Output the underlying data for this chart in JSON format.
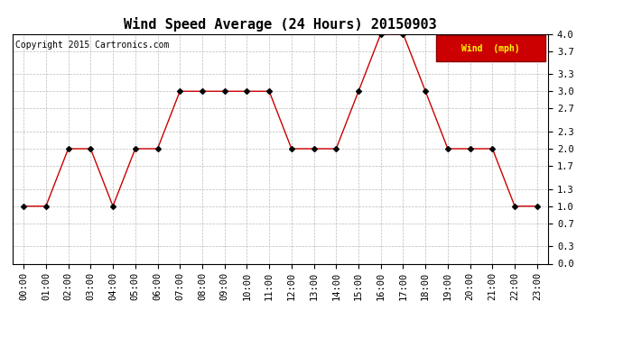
{
  "title": "Wind Speed Average (24 Hours) 20150903",
  "copyright": "Copyright 2015 Cartronics.com",
  "legend_label": "Wind  (mph)",
  "x_labels": [
    "00:00",
    "01:00",
    "02:00",
    "03:00",
    "04:00",
    "05:00",
    "06:00",
    "07:00",
    "08:00",
    "09:00",
    "10:00",
    "11:00",
    "12:00",
    "13:00",
    "14:00",
    "15:00",
    "16:00",
    "17:00",
    "18:00",
    "19:00",
    "20:00",
    "21:00",
    "22:00",
    "23:00"
  ],
  "y_values": [
    1.0,
    1.0,
    2.0,
    2.0,
    1.0,
    2.0,
    2.0,
    3.0,
    3.0,
    3.0,
    3.0,
    3.0,
    2.0,
    2.0,
    2.0,
    3.0,
    4.0,
    4.0,
    3.0,
    2.0,
    2.0,
    2.0,
    1.0,
    1.0
  ],
  "y_ticks": [
    0.0,
    0.3,
    0.7,
    1.0,
    1.3,
    1.7,
    2.0,
    2.3,
    2.7,
    3.0,
    3.3,
    3.7,
    4.0
  ],
  "ylim": [
    0.0,
    4.0
  ],
  "line_color": "#cc0000",
  "marker_color": "#000000",
  "bg_color": "#ffffff",
  "grid_color": "#bbbbbb",
  "title_fontsize": 11,
  "axis_fontsize": 7.5,
  "copyright_fontsize": 7,
  "legend_bg": "#cc0000",
  "legend_text_color": "#ffff00",
  "legend_fontsize": 7
}
